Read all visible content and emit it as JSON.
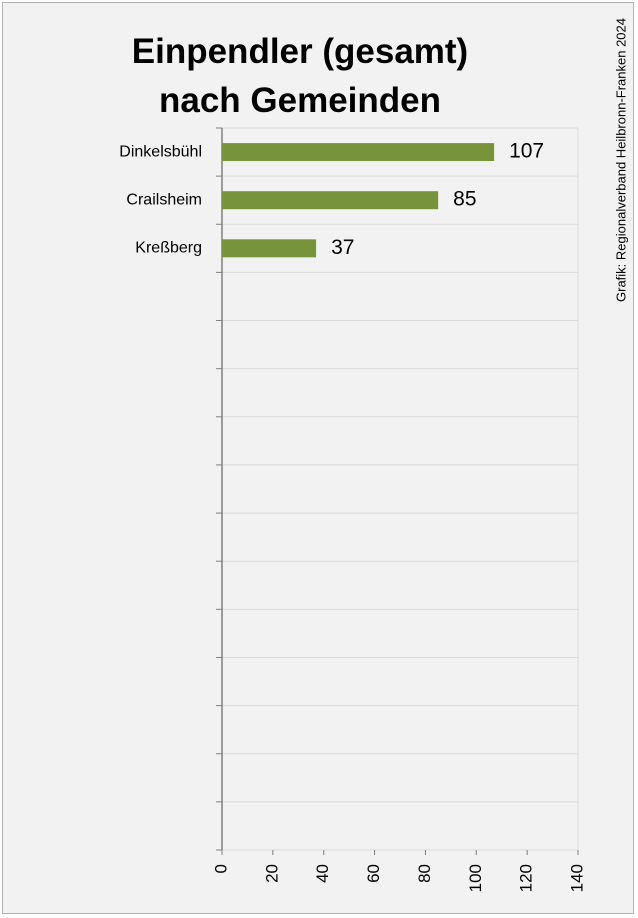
{
  "source": "Grafik: Regionalverband Heilbronn-Franken 2024",
  "colors": {
    "background": "#f2f2f2",
    "bar": "#77933c",
    "grid": "#d9d9d9",
    "axis": "#808080"
  },
  "chart_data": {
    "type": "bar",
    "orientation": "horizontal",
    "title_lines": [
      "Einpendler (gesamt)",
      "nach Gemeinden"
    ],
    "categories": [
      "Dinkelsbühl",
      "Crailsheim",
      "Kreßberg"
    ],
    "values": [
      107,
      85,
      37
    ],
    "data_labels": [
      "107",
      "85",
      "37"
    ],
    "xlim": [
      0,
      140
    ],
    "x_ticks": [
      0,
      20,
      40,
      60,
      80,
      100,
      120,
      140
    ],
    "x_tick_labels": [
      "0",
      "20",
      "40",
      "60",
      "80",
      "100",
      "120",
      "140"
    ],
    "category_slots": 15,
    "grid": true,
    "legend": "none",
    "xlabel": "",
    "ylabel": ""
  }
}
